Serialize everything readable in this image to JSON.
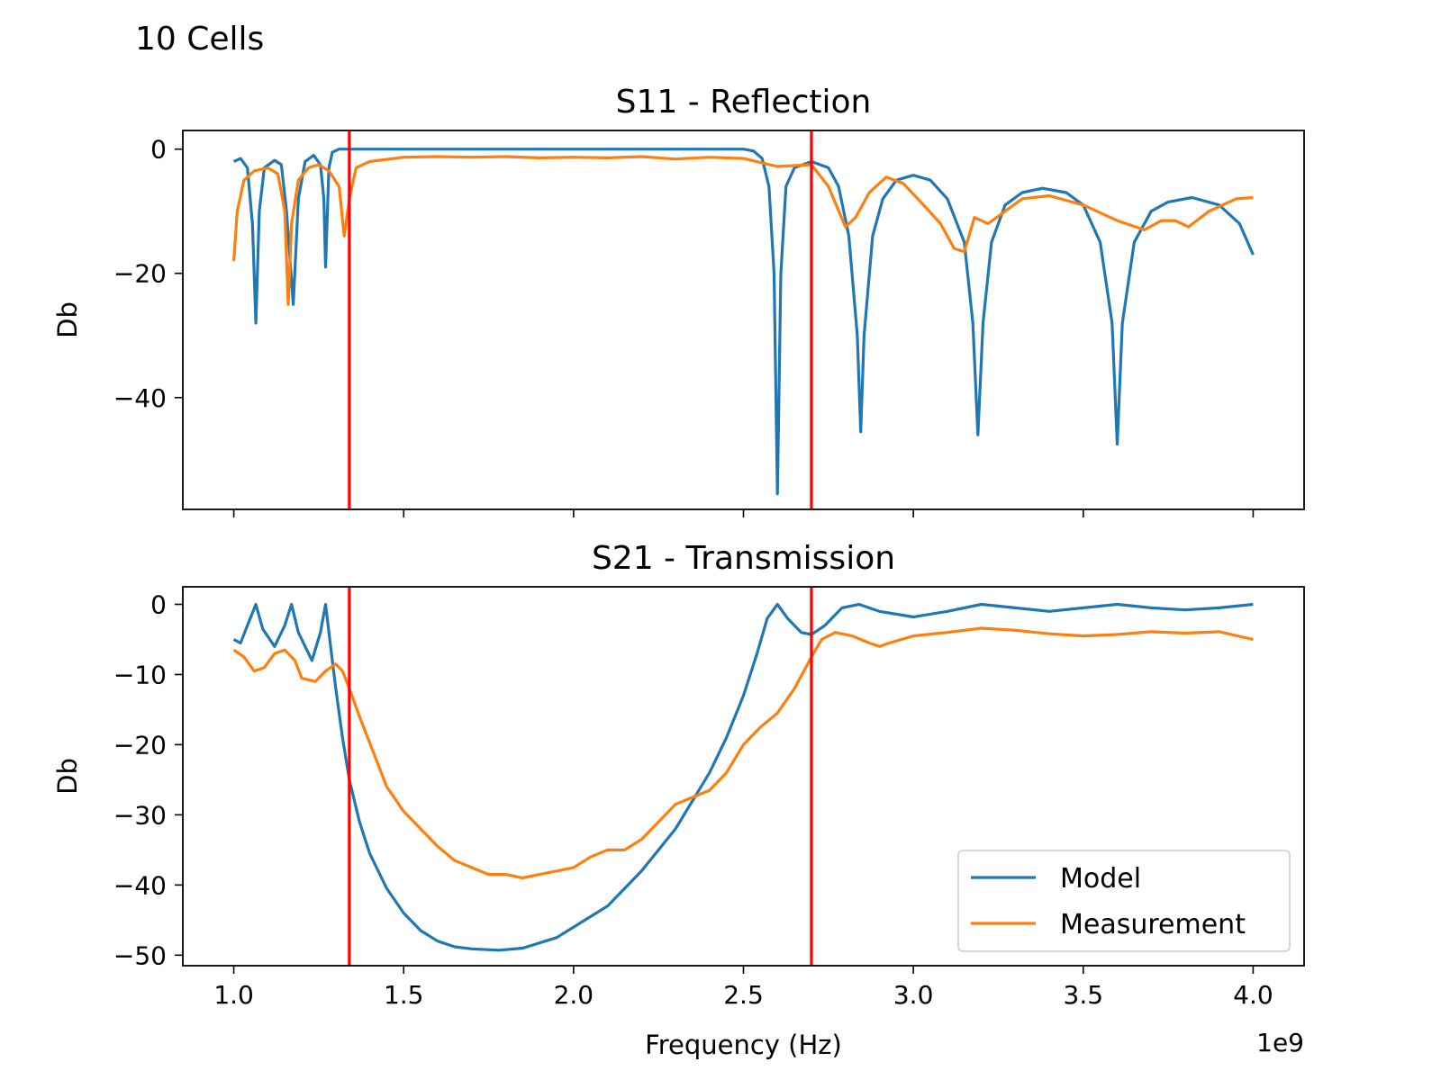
{
  "figure_title": "10 Cells",
  "colors": {
    "model": "#1f77b4",
    "measurement": "#ff7f0e",
    "marker": "#ff0000"
  },
  "chart_data": [
    {
      "type": "line",
      "title": "S11 - Reflection",
      "xlabel": "",
      "ylabel": "Db",
      "xlim": [
        0.85,
        4.15
      ],
      "ylim": [
        -58,
        3
      ],
      "x_offset_label": "",
      "x_ticks": [
        1.0,
        1.5,
        2.0,
        2.5,
        3.0,
        3.5,
        4.0
      ],
      "x_tick_labels": [
        "",
        "",
        "",
        "",
        "",
        "",
        ""
      ],
      "y_ticks": [
        0,
        -20,
        -40
      ],
      "y_tick_labels": [
        "0",
        "−20",
        "−40"
      ],
      "vlines": [
        1.34,
        2.7
      ],
      "legend": null,
      "series": [
        {
          "name": "Model",
          "points": [
            [
              1.0,
              -2
            ],
            [
              1.02,
              -1.5
            ],
            [
              1.04,
              -3
            ],
            [
              1.055,
              -12
            ],
            [
              1.065,
              -28
            ],
            [
              1.075,
              -10
            ],
            [
              1.09,
              -3
            ],
            [
              1.12,
              -1.8
            ],
            [
              1.14,
              -2.5
            ],
            [
              1.155,
              -10
            ],
            [
              1.175,
              -25
            ],
            [
              1.19,
              -8
            ],
            [
              1.21,
              -2
            ],
            [
              1.235,
              -1
            ],
            [
              1.255,
              -2.5
            ],
            [
              1.265,
              -8
            ],
            [
              1.27,
              -19
            ],
            [
              1.28,
              -3
            ],
            [
              1.29,
              -0.5
            ],
            [
              1.31,
              0
            ],
            [
              1.4,
              0
            ],
            [
              1.6,
              0
            ],
            [
              1.8,
              0
            ],
            [
              2.0,
              0
            ],
            [
              2.2,
              0
            ],
            [
              2.4,
              0
            ],
            [
              2.5,
              0
            ],
            [
              2.53,
              -0.3
            ],
            [
              2.555,
              -1.5
            ],
            [
              2.575,
              -6
            ],
            [
              2.59,
              -20
            ],
            [
              2.6,
              -55.5
            ],
            [
              2.61,
              -20
            ],
            [
              2.625,
              -6
            ],
            [
              2.65,
              -3
            ],
            [
              2.7,
              -2
            ],
            [
              2.75,
              -3
            ],
            [
              2.78,
              -6
            ],
            [
              2.81,
              -14
            ],
            [
              2.835,
              -30
            ],
            [
              2.845,
              -45.5
            ],
            [
              2.855,
              -30
            ],
            [
              2.88,
              -14
            ],
            [
              2.91,
              -8
            ],
            [
              2.95,
              -5
            ],
            [
              3.0,
              -4.2
            ],
            [
              3.05,
              -5
            ],
            [
              3.1,
              -8
            ],
            [
              3.15,
              -15
            ],
            [
              3.175,
              -28
            ],
            [
              3.19,
              -46
            ],
            [
              3.205,
              -28
            ],
            [
              3.23,
              -15
            ],
            [
              3.27,
              -9
            ],
            [
              3.32,
              -7
            ],
            [
              3.38,
              -6.3
            ],
            [
              3.45,
              -7
            ],
            [
              3.5,
              -9
            ],
            [
              3.55,
              -15
            ],
            [
              3.585,
              -28
            ],
            [
              3.6,
              -47.5
            ],
            [
              3.615,
              -28
            ],
            [
              3.65,
              -15
            ],
            [
              3.7,
              -10
            ],
            [
              3.75,
              -8.5
            ],
            [
              3.82,
              -7.8
            ],
            [
              3.9,
              -9
            ],
            [
              3.96,
              -12
            ],
            [
              4.0,
              -17
            ]
          ]
        },
        {
          "name": "Measurement",
          "points": [
            [
              1.0,
              -18
            ],
            [
              1.01,
              -10
            ],
            [
              1.03,
              -5
            ],
            [
              1.06,
              -3.5
            ],
            [
              1.1,
              -3
            ],
            [
              1.13,
              -4
            ],
            [
              1.15,
              -10
            ],
            [
              1.16,
              -25
            ],
            [
              1.17,
              -12
            ],
            [
              1.19,
              -5
            ],
            [
              1.22,
              -3
            ],
            [
              1.25,
              -2.5
            ],
            [
              1.28,
              -3.5
            ],
            [
              1.31,
              -6
            ],
            [
              1.325,
              -14
            ],
            [
              1.34,
              -8
            ],
            [
              1.36,
              -3
            ],
            [
              1.4,
              -2
            ],
            [
              1.5,
              -1.3
            ],
            [
              1.6,
              -1.2
            ],
            [
              1.7,
              -1.3
            ],
            [
              1.8,
              -1.2
            ],
            [
              1.9,
              -1.4
            ],
            [
              2.0,
              -1.3
            ],
            [
              2.1,
              -1.4
            ],
            [
              2.2,
              -1.2
            ],
            [
              2.3,
              -1.6
            ],
            [
              2.4,
              -1.3
            ],
            [
              2.5,
              -1.5
            ],
            [
              2.6,
              -2.8
            ],
            [
              2.7,
              -2.5
            ],
            [
              2.75,
              -6
            ],
            [
              2.8,
              -12.5
            ],
            [
              2.83,
              -11
            ],
            [
              2.87,
              -7
            ],
            [
              2.92,
              -4.5
            ],
            [
              2.97,
              -5.5
            ],
            [
              3.03,
              -9
            ],
            [
              3.08,
              -12
            ],
            [
              3.12,
              -16
            ],
            [
              3.15,
              -16.5
            ],
            [
              3.18,
              -11
            ],
            [
              3.22,
              -12
            ],
            [
              3.27,
              -10
            ],
            [
              3.32,
              -8
            ],
            [
              3.4,
              -7.5
            ],
            [
              3.5,
              -9
            ],
            [
              3.6,
              -11.5
            ],
            [
              3.68,
              -13
            ],
            [
              3.73,
              -11.5
            ],
            [
              3.77,
              -11.5
            ],
            [
              3.81,
              -12.5
            ],
            [
              3.87,
              -10
            ],
            [
              3.95,
              -8
            ],
            [
              4.0,
              -7.8
            ]
          ]
        }
      ]
    },
    {
      "type": "line",
      "title": "S21 - Transmission",
      "xlabel": "Frequency (Hz)",
      "ylabel": "Db",
      "xlim": [
        0.85,
        4.15
      ],
      "ylim": [
        -51.5,
        2.5
      ],
      "x_offset_label": "1e9",
      "x_ticks": [
        1.0,
        1.5,
        2.0,
        2.5,
        3.0,
        3.5,
        4.0
      ],
      "x_tick_labels": [
        "1.0",
        "1.5",
        "2.0",
        "2.5",
        "3.0",
        "3.5",
        "4.0"
      ],
      "y_ticks": [
        0,
        -10,
        -20,
        -30,
        -40,
        -50
      ],
      "y_tick_labels": [
        "0",
        "−10",
        "−20",
        "−30",
        "−40",
        "−50"
      ],
      "vlines": [
        1.34,
        2.7
      ],
      "legend": {
        "location": "lower right",
        "entries": [
          "Model",
          "Measurement"
        ]
      },
      "series": [
        {
          "name": "Model",
          "points": [
            [
              1.0,
              -5
            ],
            [
              1.02,
              -5.5
            ],
            [
              1.04,
              -3
            ],
            [
              1.065,
              0
            ],
            [
              1.085,
              -3.5
            ],
            [
              1.12,
              -6
            ],
            [
              1.15,
              -3
            ],
            [
              1.17,
              0
            ],
            [
              1.19,
              -4
            ],
            [
              1.23,
              -8
            ],
            [
              1.255,
              -4
            ],
            [
              1.27,
              0
            ],
            [
              1.285,
              -6
            ],
            [
              1.3,
              -12
            ],
            [
              1.32,
              -19
            ],
            [
              1.34,
              -25
            ],
            [
              1.37,
              -31
            ],
            [
              1.4,
              -35.5
            ],
            [
              1.45,
              -40.5
            ],
            [
              1.5,
              -44
            ],
            [
              1.55,
              -46.5
            ],
            [
              1.6,
              -48
            ],
            [
              1.65,
              -48.8
            ],
            [
              1.7,
              -49.1
            ],
            [
              1.78,
              -49.3
            ],
            [
              1.85,
              -49
            ],
            [
              1.95,
              -47.5
            ],
            [
              2.0,
              -46
            ],
            [
              2.1,
              -43
            ],
            [
              2.2,
              -38
            ],
            [
              2.3,
              -32
            ],
            [
              2.4,
              -24
            ],
            [
              2.45,
              -19
            ],
            [
              2.5,
              -13
            ],
            [
              2.54,
              -7
            ],
            [
              2.57,
              -2
            ],
            [
              2.6,
              0
            ],
            [
              2.63,
              -2
            ],
            [
              2.67,
              -4
            ],
            [
              2.7,
              -4.3
            ],
            [
              2.74,
              -3
            ],
            [
              2.79,
              -0.5
            ],
            [
              2.84,
              0
            ],
            [
              2.9,
              -1
            ],
            [
              3.0,
              -1.8
            ],
            [
              3.1,
              -1
            ],
            [
              3.2,
              0
            ],
            [
              3.3,
              -0.5
            ],
            [
              3.4,
              -1
            ],
            [
              3.5,
              -0.5
            ],
            [
              3.6,
              0
            ],
            [
              3.7,
              -0.5
            ],
            [
              3.8,
              -0.8
            ],
            [
              3.9,
              -0.5
            ],
            [
              4.0,
              0
            ]
          ]
        },
        {
          "name": "Measurement",
          "points": [
            [
              1.0,
              -6.5
            ],
            [
              1.03,
              -7.5
            ],
            [
              1.06,
              -9.5
            ],
            [
              1.09,
              -9
            ],
            [
              1.12,
              -7
            ],
            [
              1.15,
              -6.5
            ],
            [
              1.18,
              -8
            ],
            [
              1.2,
              -10.5
            ],
            [
              1.24,
              -11
            ],
            [
              1.27,
              -9.5
            ],
            [
              1.3,
              -8.5
            ],
            [
              1.32,
              -9.5
            ],
            [
              1.34,
              -12
            ],
            [
              1.37,
              -16
            ],
            [
              1.41,
              -21
            ],
            [
              1.45,
              -26
            ],
            [
              1.5,
              -29.5
            ],
            [
              1.55,
              -32
            ],
            [
              1.6,
              -34.5
            ],
            [
              1.65,
              -36.5
            ],
            [
              1.7,
              -37.5
            ],
            [
              1.75,
              -38.5
            ],
            [
              1.8,
              -38.5
            ],
            [
              1.85,
              -39
            ],
            [
              1.9,
              -38.5
            ],
            [
              1.95,
              -38
            ],
            [
              2.0,
              -37.5
            ],
            [
              2.05,
              -36
            ],
            [
              2.1,
              -35
            ],
            [
              2.15,
              -35
            ],
            [
              2.2,
              -33.5
            ],
            [
              2.25,
              -31
            ],
            [
              2.3,
              -28.5
            ],
            [
              2.35,
              -27.5
            ],
            [
              2.4,
              -26.5
            ],
            [
              2.45,
              -24
            ],
            [
              2.5,
              -20
            ],
            [
              2.55,
              -17.5
            ],
            [
              2.6,
              -15.5
            ],
            [
              2.65,
              -12
            ],
            [
              2.7,
              -7.5
            ],
            [
              2.73,
              -5
            ],
            [
              2.77,
              -4
            ],
            [
              2.82,
              -4.5
            ],
            [
              2.87,
              -5.5
            ],
            [
              2.9,
              -6
            ],
            [
              2.93,
              -5.5
            ],
            [
              3.0,
              -4.5
            ],
            [
              3.1,
              -4
            ],
            [
              3.2,
              -3.4
            ],
            [
              3.3,
              -3.7
            ],
            [
              3.4,
              -4.2
            ],
            [
              3.5,
              -4.5
            ],
            [
              3.6,
              -4.3
            ],
            [
              3.7,
              -3.9
            ],
            [
              3.8,
              -4.1
            ],
            [
              3.9,
              -3.9
            ],
            [
              4.0,
              -5
            ]
          ]
        }
      ]
    }
  ]
}
